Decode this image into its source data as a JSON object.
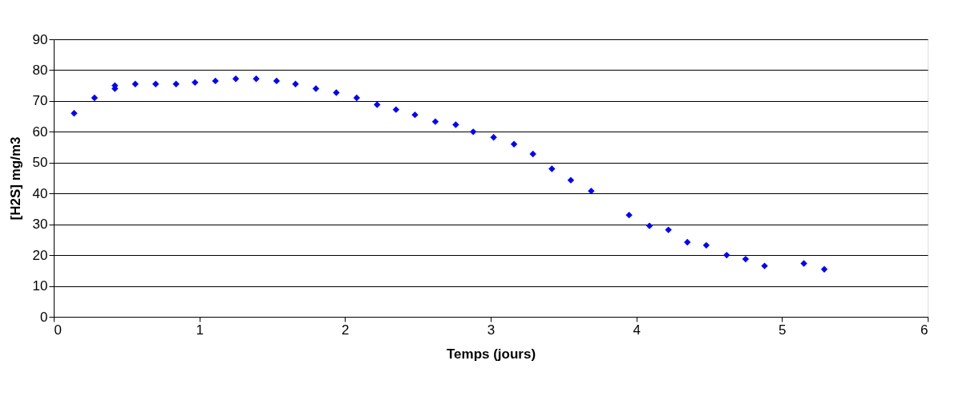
{
  "chart_data": {
    "type": "scatter",
    "xlabel": "Temps (jours)",
    "ylabel": "[H2S] mg/m3",
    "x": [
      0.14,
      0.28,
      0.42,
      0.42,
      0.56,
      0.7,
      0.84,
      0.97,
      1.11,
      1.25,
      1.39,
      1.53,
      1.66,
      1.8,
      1.94,
      2.08,
      2.22,
      2.35,
      2.48,
      2.62,
      2.76,
      2.88,
      3.02,
      3.16,
      3.29,
      3.42,
      3.55,
      3.69,
      3.95,
      4.09,
      4.22,
      4.35,
      4.48,
      4.62,
      4.75,
      4.88,
      5.15,
      5.29
    ],
    "series": [
      {
        "color": "#0000ff",
        "values": [
          66,
          71,
          74,
          75,
          75.5,
          75.5,
          75.5,
          76,
          76.5,
          77.2,
          77.2,
          76.5,
          75.5,
          74,
          72.7,
          71,
          68.8,
          67.2,
          65.5,
          63.3,
          62.3,
          60,
          58.2,
          56,
          52.8,
          48,
          44.3,
          40.8,
          33,
          29.5,
          28.2,
          24.2,
          23.2,
          20,
          18.7,
          16.5,
          17.3,
          15.4
        ]
      }
    ],
    "xlim": [
      0,
      6
    ],
    "xticks": [
      0,
      1,
      2,
      3,
      4,
      5,
      6
    ],
    "ylim": [
      0,
      90
    ],
    "yticks": [
      0,
      10,
      20,
      30,
      40,
      50,
      60,
      70,
      80,
      90
    ],
    "grid": "y",
    "marker": "diamond",
    "legend": false
  }
}
